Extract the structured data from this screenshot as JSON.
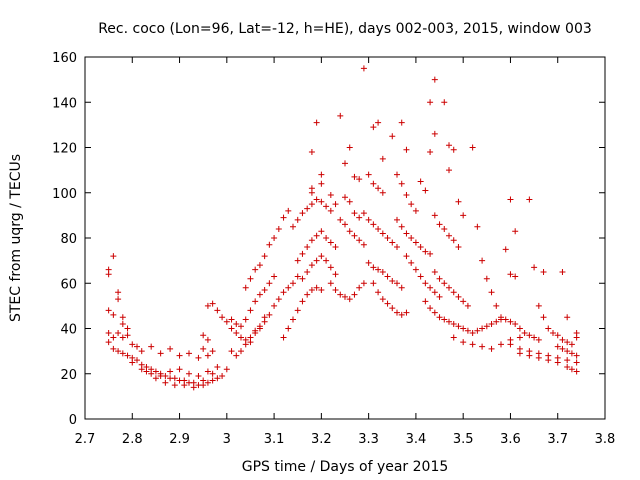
{
  "chart_data": {
    "type": "scatter",
    "title": "Rec. coco (Lon=96, Lat=-12, h=HE), days 002-003, 2015, window 003",
    "xlabel": "GPS time / Days of year 2015",
    "ylabel": "STEC from uqrg / TECUs",
    "xlim": [
      2.7,
      3.8
    ],
    "ylim": [
      0,
      160
    ],
    "xticks": [
      2.7,
      2.8,
      2.9,
      3.0,
      3.1,
      3.2,
      3.3,
      3.4,
      3.5,
      3.6,
      3.7,
      3.8
    ],
    "xtick_labels": [
      "2.7",
      "2.8",
      "2.9",
      "3",
      "3.1",
      "3.2",
      "3.3",
      "3.4",
      "3.5",
      "3.6",
      "3.7",
      "3.8"
    ],
    "yticks": [
      0,
      20,
      40,
      60,
      80,
      100,
      120,
      140,
      160
    ],
    "ytick_labels": [
      "0",
      "20",
      "40",
      "60",
      "80",
      "100",
      "120",
      "140",
      "160"
    ],
    "grid": false,
    "legend": "none",
    "marker": "plus",
    "color": "#cc0000",
    "points": [
      [
        2.75,
        66
      ],
      [
        2.75,
        64
      ],
      [
        2.76,
        72
      ],
      [
        2.77,
        56
      ],
      [
        2.77,
        53
      ],
      [
        2.75,
        48
      ],
      [
        2.76,
        46
      ],
      [
        2.78,
        45
      ],
      [
        2.78,
        42
      ],
      [
        2.79,
        40
      ],
      [
        2.75,
        38
      ],
      [
        2.76,
        36
      ],
      [
        2.77,
        38
      ],
      [
        2.78,
        36
      ],
      [
        2.79,
        37
      ],
      [
        2.8,
        33
      ],
      [
        2.81,
        32
      ],
      [
        2.82,
        30
      ],
      [
        2.84,
        32
      ],
      [
        2.86,
        29
      ],
      [
        2.88,
        31
      ],
      [
        2.9,
        28
      ],
      [
        2.92,
        29
      ],
      [
        2.94,
        27
      ],
      [
        2.95,
        31
      ],
      [
        2.96,
        28
      ],
      [
        2.97,
        30
      ],
      [
        2.96,
        35
      ],
      [
        2.95,
        37
      ],
      [
        2.75,
        34
      ],
      [
        2.76,
        31
      ],
      [
        2.77,
        30
      ],
      [
        2.78,
        29
      ],
      [
        2.79,
        28
      ],
      [
        2.8,
        27
      ],
      [
        2.81,
        26
      ],
      [
        2.82,
        24
      ],
      [
        2.83,
        23
      ],
      [
        2.84,
        22
      ],
      [
        2.85,
        21
      ],
      [
        2.86,
        20
      ],
      [
        2.87,
        19
      ],
      [
        2.88,
        18
      ],
      [
        2.89,
        18
      ],
      [
        2.9,
        17
      ],
      [
        2.91,
        17
      ],
      [
        2.92,
        16
      ],
      [
        2.93,
        16
      ],
      [
        2.94,
        15
      ],
      [
        2.95,
        15
      ],
      [
        2.96,
        16
      ],
      [
        2.97,
        17
      ],
      [
        2.98,
        18
      ],
      [
        2.99,
        19
      ],
      [
        3.0,
        22
      ],
      [
        2.8,
        25
      ],
      [
        2.82,
        22
      ],
      [
        2.84,
        20
      ],
      [
        2.86,
        19
      ],
      [
        2.88,
        21
      ],
      [
        2.9,
        22
      ],
      [
        2.92,
        20
      ],
      [
        2.94,
        19
      ],
      [
        2.96,
        21
      ],
      [
        2.98,
        23
      ],
      [
        2.83,
        21
      ],
      [
        2.85,
        18
      ],
      [
        2.87,
        16
      ],
      [
        2.89,
        15
      ],
      [
        2.91,
        15
      ],
      [
        2.93,
        14
      ],
      [
        2.95,
        17
      ],
      [
        2.97,
        20
      ],
      [
        2.96,
        50
      ],
      [
        2.97,
        51
      ],
      [
        2.98,
        48
      ],
      [
        2.99,
        45
      ],
      [
        3.0,
        43
      ],
      [
        3.01,
        40
      ],
      [
        3.02,
        38
      ],
      [
        3.03,
        36
      ],
      [
        3.04,
        35
      ],
      [
        3.05,
        34
      ],
      [
        3.01,
        44
      ],
      [
        3.02,
        42
      ],
      [
        3.03,
        41
      ],
      [
        3.04,
        44
      ],
      [
        3.05,
        48
      ],
      [
        3.06,
        52
      ],
      [
        3.07,
        55
      ],
      [
        3.08,
        57
      ],
      [
        3.09,
        60
      ],
      [
        3.1,
        63
      ],
      [
        3.04,
        58
      ],
      [
        3.05,
        62
      ],
      [
        3.06,
        66
      ],
      [
        3.07,
        68
      ],
      [
        3.08,
        72
      ],
      [
        3.09,
        77
      ],
      [
        3.1,
        80
      ],
      [
        3.11,
        84
      ],
      [
        3.12,
        89
      ],
      [
        3.13,
        92
      ],
      [
        3.06,
        38
      ],
      [
        3.07,
        40
      ],
      [
        3.08,
        43
      ],
      [
        3.09,
        46
      ],
      [
        3.1,
        50
      ],
      [
        3.11,
        53
      ],
      [
        3.12,
        56
      ],
      [
        3.13,
        58
      ],
      [
        3.14,
        60
      ],
      [
        3.15,
        63
      ],
      [
        3.01,
        30
      ],
      [
        3.02,
        28
      ],
      [
        3.03,
        30
      ],
      [
        3.04,
        33
      ],
      [
        3.05,
        36
      ],
      [
        3.06,
        39
      ],
      [
        3.07,
        41
      ],
      [
        3.08,
        45
      ],
      [
        3.12,
        36
      ],
      [
        3.13,
        40
      ],
      [
        3.14,
        44
      ],
      [
        3.15,
        48
      ],
      [
        3.16,
        52
      ],
      [
        3.17,
        55
      ],
      [
        3.18,
        57
      ],
      [
        3.19,
        58
      ],
      [
        3.2,
        57
      ],
      [
        3.14,
        85
      ],
      [
        3.15,
        88
      ],
      [
        3.16,
        91
      ],
      [
        3.17,
        93
      ],
      [
        3.18,
        95
      ],
      [
        3.19,
        97
      ],
      [
        3.2,
        96
      ],
      [
        3.21,
        94
      ],
      [
        3.22,
        92
      ],
      [
        3.18,
        118
      ],
      [
        3.19,
        131
      ],
      [
        3.2,
        108
      ],
      [
        3.2,
        104
      ],
      [
        3.18,
        102
      ],
      [
        3.18,
        100
      ],
      [
        3.15,
        70
      ],
      [
        3.16,
        73
      ],
      [
        3.17,
        76
      ],
      [
        3.18,
        79
      ],
      [
        3.19,
        81
      ],
      [
        3.2,
        83
      ],
      [
        3.21,
        80
      ],
      [
        3.22,
        78
      ],
      [
        3.23,
        76
      ],
      [
        3.16,
        62
      ],
      [
        3.17,
        65
      ],
      [
        3.18,
        68
      ],
      [
        3.19,
        70
      ],
      [
        3.2,
        72
      ],
      [
        3.21,
        70
      ],
      [
        3.22,
        67
      ],
      [
        3.23,
        64
      ],
      [
        3.22,
        60
      ],
      [
        3.23,
        57
      ],
      [
        3.24,
        55
      ],
      [
        3.25,
        54
      ],
      [
        3.26,
        53
      ],
      [
        3.27,
        55
      ],
      [
        3.28,
        58
      ],
      [
        3.29,
        60
      ],
      [
        3.24,
        134
      ],
      [
        3.26,
        120
      ],
      [
        3.25,
        113
      ],
      [
        3.27,
        107
      ],
      [
        3.28,
        106
      ],
      [
        3.25,
        98
      ],
      [
        3.26,
        96
      ],
      [
        3.27,
        91
      ],
      [
        3.28,
        89
      ],
      [
        3.22,
        99
      ],
      [
        3.23,
        95
      ],
      [
        3.24,
        88
      ],
      [
        3.25,
        86
      ],
      [
        3.26,
        83
      ],
      [
        3.27,
        81
      ],
      [
        3.28,
        79
      ],
      [
        3.29,
        77
      ],
      [
        3.29,
        155
      ],
      [
        3.31,
        129
      ],
      [
        3.32,
        131
      ],
      [
        3.33,
        115
      ],
      [
        3.3,
        108
      ],
      [
        3.31,
        104
      ],
      [
        3.32,
        102
      ],
      [
        3.33,
        100
      ],
      [
        3.29,
        91
      ],
      [
        3.3,
        88
      ],
      [
        3.31,
        86
      ],
      [
        3.32,
        84
      ],
      [
        3.33,
        82
      ],
      [
        3.34,
        80
      ],
      [
        3.35,
        78
      ],
      [
        3.36,
        76
      ],
      [
        3.3,
        69
      ],
      [
        3.31,
        67
      ],
      [
        3.32,
        66
      ],
      [
        3.33,
        65
      ],
      [
        3.34,
        63
      ],
      [
        3.35,
        61
      ],
      [
        3.36,
        60
      ],
      [
        3.37,
        58
      ],
      [
        3.31,
        60
      ],
      [
        3.32,
        56
      ],
      [
        3.33,
        53
      ],
      [
        3.34,
        51
      ],
      [
        3.35,
        49
      ],
      [
        3.36,
        47
      ],
      [
        3.37,
        46
      ],
      [
        3.38,
        47
      ],
      [
        3.35,
        125
      ],
      [
        3.37,
        131
      ],
      [
        3.38,
        119
      ],
      [
        3.36,
        108
      ],
      [
        3.37,
        104
      ],
      [
        3.38,
        99
      ],
      [
        3.39,
        95
      ],
      [
        3.4,
        92
      ],
      [
        3.36,
        88
      ],
      [
        3.37,
        85
      ],
      [
        3.38,
        82
      ],
      [
        3.39,
        80
      ],
      [
        3.4,
        78
      ],
      [
        3.41,
        76
      ],
      [
        3.42,
        74
      ],
      [
        3.43,
        73
      ],
      [
        3.38,
        72
      ],
      [
        3.39,
        69
      ],
      [
        3.4,
        66
      ],
      [
        3.41,
        63
      ],
      [
        3.42,
        60
      ],
      [
        3.43,
        58
      ],
      [
        3.44,
        56
      ],
      [
        3.45,
        54
      ],
      [
        3.43,
        140
      ],
      [
        3.44,
        150
      ],
      [
        3.46,
        140
      ],
      [
        3.43,
        118
      ],
      [
        3.44,
        126
      ],
      [
        3.47,
        121
      ],
      [
        3.48,
        119
      ],
      [
        3.47,
        110
      ],
      [
        3.41,
        105
      ],
      [
        3.42,
        101
      ],
      [
        3.44,
        90
      ],
      [
        3.45,
        86
      ],
      [
        3.46,
        84
      ],
      [
        3.47,
        81
      ],
      [
        3.48,
        79
      ],
      [
        3.49,
        76
      ],
      [
        3.44,
        65
      ],
      [
        3.45,
        62
      ],
      [
        3.46,
        60
      ],
      [
        3.47,
        58
      ],
      [
        3.48,
        56
      ],
      [
        3.49,
        54
      ],
      [
        3.5,
        52
      ],
      [
        3.51,
        50
      ],
      [
        3.42,
        52
      ],
      [
        3.43,
        49
      ],
      [
        3.44,
        47
      ],
      [
        3.45,
        45
      ],
      [
        3.46,
        44
      ],
      [
        3.47,
        43
      ],
      [
        3.48,
        42
      ],
      [
        3.49,
        41
      ],
      [
        3.49,
        96
      ],
      [
        3.5,
        90
      ],
      [
        3.52,
        120
      ],
      [
        3.53,
        85
      ],
      [
        3.54,
        70
      ],
      [
        3.55,
        62
      ],
      [
        3.56,
        56
      ],
      [
        3.57,
        50
      ],
      [
        3.5,
        40
      ],
      [
        3.51,
        39
      ],
      [
        3.52,
        38
      ],
      [
        3.53,
        39
      ],
      [
        3.54,
        40
      ],
      [
        3.55,
        41
      ],
      [
        3.56,
        42
      ],
      [
        3.57,
        43
      ],
      [
        3.58,
        44
      ],
      [
        3.48,
        36
      ],
      [
        3.5,
        34
      ],
      [
        3.52,
        33
      ],
      [
        3.54,
        32
      ],
      [
        3.56,
        31
      ],
      [
        3.58,
        33
      ],
      [
        3.6,
        35
      ],
      [
        3.62,
        36
      ],
      [
        3.6,
        97
      ],
      [
        3.61,
        83
      ],
      [
        3.59,
        75
      ],
      [
        3.6,
        64
      ],
      [
        3.61,
        63
      ],
      [
        3.64,
        97
      ],
      [
        3.65,
        67
      ],
      [
        3.67,
        65
      ],
      [
        3.71,
        65
      ],
      [
        3.58,
        45
      ],
      [
        3.59,
        44
      ],
      [
        3.6,
        43
      ],
      [
        3.61,
        42
      ],
      [
        3.62,
        40
      ],
      [
        3.63,
        38
      ],
      [
        3.64,
        37
      ],
      [
        3.65,
        36
      ],
      [
        3.66,
        35
      ],
      [
        3.6,
        33
      ],
      [
        3.62,
        31
      ],
      [
        3.64,
        30
      ],
      [
        3.66,
        29
      ],
      [
        3.68,
        28
      ],
      [
        3.7,
        27
      ],
      [
        3.72,
        26
      ],
      [
        3.74,
        25
      ],
      [
        3.62,
        29
      ],
      [
        3.64,
        28
      ],
      [
        3.66,
        27
      ],
      [
        3.68,
        26
      ],
      [
        3.7,
        25
      ],
      [
        3.72,
        23
      ],
      [
        3.73,
        22
      ],
      [
        3.74,
        21
      ],
      [
        3.66,
        50
      ],
      [
        3.67,
        45
      ],
      [
        3.68,
        40
      ],
      [
        3.69,
        38
      ],
      [
        3.7,
        37
      ],
      [
        3.71,
        35
      ],
      [
        3.72,
        34
      ],
      [
        3.73,
        33
      ],
      [
        3.74,
        36
      ],
      [
        3.7,
        32
      ],
      [
        3.71,
        31
      ],
      [
        3.72,
        30
      ],
      [
        3.73,
        29
      ],
      [
        3.74,
        28
      ],
      [
        3.72,
        45
      ],
      [
        3.74,
        38
      ]
    ]
  }
}
